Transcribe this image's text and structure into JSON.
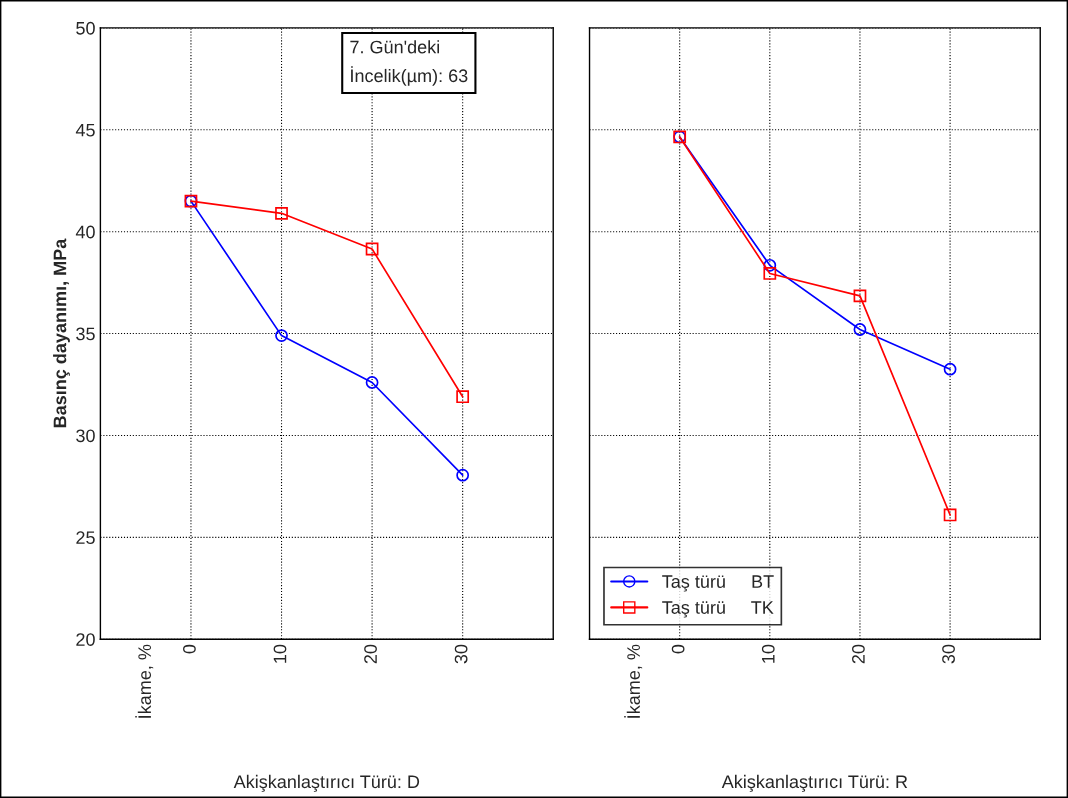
{
  "chart_data": [
    {
      "type": "line",
      "ylabel": "Basınç dayanımı, MPa",
      "xlabel": "Akişkanlaştırıcı Türü: D",
      "x": [
        0,
        10,
        20,
        30
      ],
      "xlim": [
        -10,
        40
      ],
      "xticks": [
        {
          "value": -5,
          "label": "İkame, %"
        },
        0,
        10,
        20,
        30
      ],
      "ylim": [
        20,
        50
      ],
      "yticks": [
        20,
        25,
        30,
        35,
        40,
        45,
        50
      ],
      "grid": true,
      "legend": false,
      "annotations": [
        "7. Gün'deki\nİncelik(µm): 63"
      ],
      "series": [
        {
          "color": "#0000ff",
          "marker": "circle",
          "values": [
            41.5,
            34.9,
            32.6,
            28.05
          ]
        },
        {
          "color": "#ff0000",
          "marker": "square",
          "values": [
            41.5,
            40.9,
            39.15,
            31.9
          ]
        }
      ]
    },
    {
      "type": "line",
      "xlabel": "Akişkanlaştırıcı Türü: R",
      "x": [
        0,
        10,
        20,
        30
      ],
      "xlim": [
        -10,
        40
      ],
      "xticks": [
        {
          "value": -5,
          "label": "İkame, %"
        },
        0,
        10,
        20,
        30
      ],
      "ylim": [
        20,
        50
      ],
      "yticks": [
        20,
        25,
        30,
        35,
        40,
        45,
        50
      ],
      "grid": true,
      "legend": "bottom left",
      "tick_labels": "x",
      "series": [
        {
          "name": "Taş türü     BT",
          "color": "#0000ff",
          "marker": "circle",
          "values": [
            44.65,
            38.35,
            35.2,
            33.25
          ]
        },
        {
          "name": "Taş türü     TK",
          "color": "#ff0000",
          "marker": "square",
          "values": [
            44.65,
            37.95,
            36.85,
            26.1
          ]
        }
      ]
    }
  ]
}
